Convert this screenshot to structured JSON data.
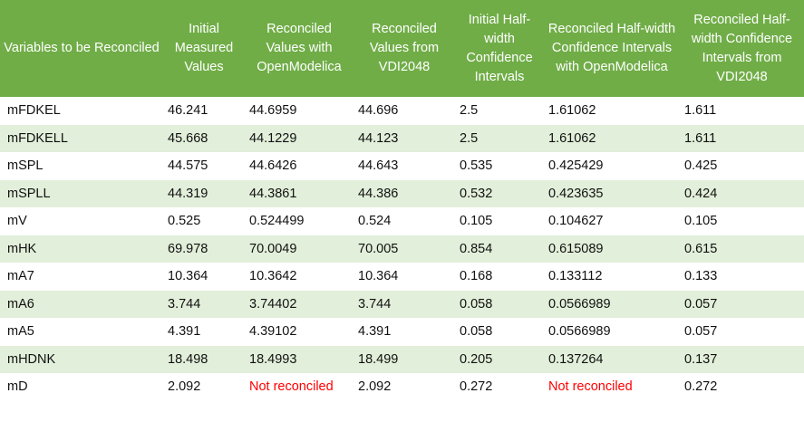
{
  "table": {
    "header": [
      "Variables to be Reconciled",
      "Initial Measured Values",
      "Reconciled Values with OpenModelica",
      "Reconciled Values from VDI2048",
      "Initial Half-width Confidence Intervals",
      "Reconciled Half-width Confidence Intervals with OpenModelica",
      "Reconciled Half-width Confidence Intervals from VDI2048"
    ],
    "rows": [
      [
        "mFDKEL",
        "46.241",
        "44.6959",
        "44.696",
        "2.5",
        "1.61062",
        "1.611"
      ],
      [
        "mFDKELL",
        "45.668",
        "44.1229",
        "44.123",
        "2.5",
        "1.61062",
        "1.611"
      ],
      [
        "mSPL",
        "44.575",
        "44.6426",
        "44.643",
        "0.535",
        "0.425429",
        "0.425"
      ],
      [
        "mSPLL",
        "44.319",
        "44.3861",
        "44.386",
        "0.532",
        "0.423635",
        "0.424"
      ],
      [
        "mV",
        "0.525",
        "0.524499",
        "0.524",
        "0.105",
        "0.104627",
        "0.105"
      ],
      [
        "mHK",
        "69.978",
        "70.0049",
        "70.005",
        "0.854",
        "0.615089",
        "0.615"
      ],
      [
        "mA7",
        "10.364",
        "10.3642",
        "10.364",
        "0.168",
        "0.133112",
        "0.133"
      ],
      [
        "mA6",
        "3.744",
        "3.74402",
        "3.744",
        "0.058",
        "0.0566989",
        "0.057"
      ],
      [
        "mA5",
        "4.391",
        "4.39102",
        "4.391",
        "0.058",
        "0.0566989",
        "0.057"
      ],
      [
        "mHDNK",
        "18.498",
        "18.4993",
        "18.499",
        "0.205",
        "0.137264",
        "0.137"
      ],
      [
        "mD",
        "2.092",
        "Not reconciled",
        "2.092",
        "0.272",
        "Not reconciled",
        "0.272"
      ]
    ]
  }
}
